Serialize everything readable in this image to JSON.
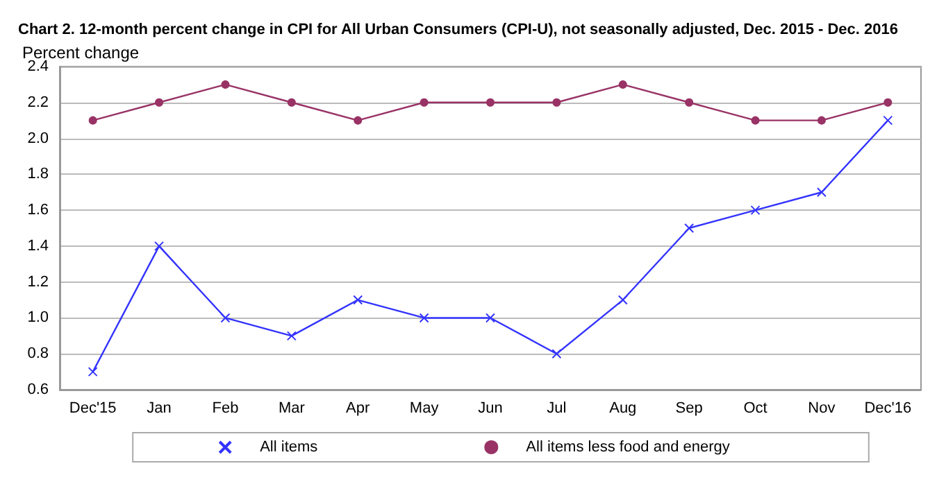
{
  "chart_data": {
    "type": "line",
    "title": "Chart 2. 12-month percent change in CPI for All Urban Consumers (CPI-U), not seasonally adjusted, Dec. 2015 - Dec. 2016",
    "ylabel": "Percent change",
    "categories": [
      "Dec'15",
      "Jan",
      "Feb",
      "Mar",
      "Apr",
      "May",
      "Jun",
      "Jul",
      "Aug",
      "Sep",
      "Oct",
      "Nov",
      "Dec'16"
    ],
    "series": [
      {
        "name": "All items",
        "color": "#3333ff",
        "marker": "cross",
        "values": [
          0.7,
          1.4,
          1.0,
          0.9,
          1.1,
          1.0,
          1.0,
          0.8,
          1.1,
          1.5,
          1.6,
          1.7,
          2.1
        ]
      },
      {
        "name": "All items less food and energy",
        "color": "#993366",
        "marker": "circle",
        "values": [
          2.1,
          2.2,
          2.3,
          2.2,
          2.1,
          2.2,
          2.2,
          2.2,
          2.3,
          2.2,
          2.1,
          2.1,
          2.2
        ]
      }
    ],
    "ylim": [
      0.6,
      2.4
    ],
    "yticks": [
      0.6,
      0.8,
      {
        "value": 1,
        "label": "1.0"
      },
      1.2,
      1.4,
      1.6,
      1.8,
      {
        "value": 2,
        "label": "2.0"
      },
      2.2,
      2.4
    ],
    "grid": "y",
    "legend": "bottom"
  }
}
